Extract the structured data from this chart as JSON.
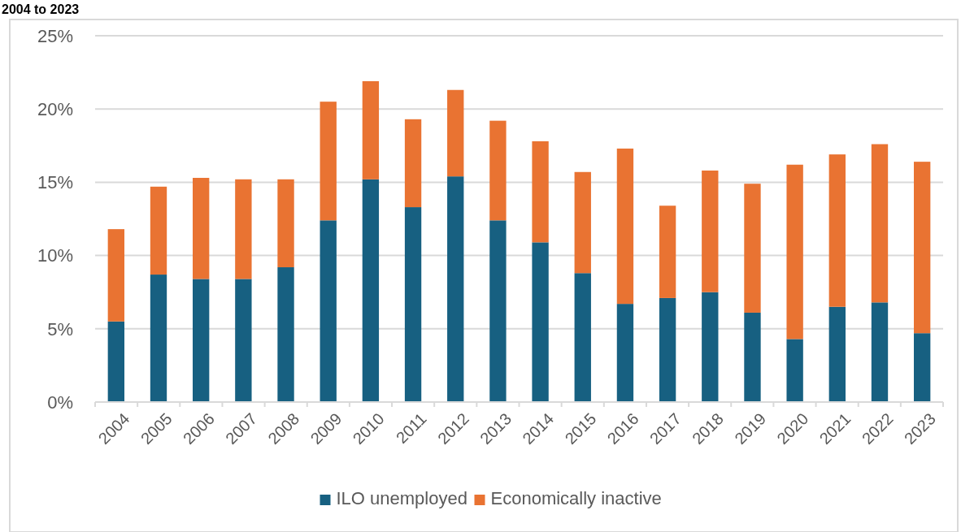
{
  "chart_data": {
    "type": "bar",
    "title": "2004 to 2023",
    "stacked": true,
    "categories": [
      "2004",
      "2005",
      "2006",
      "2007",
      "2008",
      "2009",
      "2010",
      "2011",
      "2012",
      "2013",
      "2014",
      "2015",
      "2016",
      "2017",
      "2018",
      "2019",
      "2020",
      "2021",
      "2022",
      "2023"
    ],
    "series": [
      {
        "name": "ILO unemployed",
        "color": "#176081",
        "values": [
          5.5,
          8.7,
          8.4,
          8.4,
          9.2,
          12.4,
          15.2,
          13.3,
          15.4,
          12.4,
          10.9,
          8.8,
          6.7,
          7.1,
          7.5,
          6.1,
          4.3,
          6.5,
          6.8,
          4.7
        ]
      },
      {
        "name": "Economically inactive",
        "color": "#e97332",
        "values": [
          6.3,
          6.0,
          6.9,
          6.8,
          6.0,
          8.1,
          6.7,
          6.0,
          5.9,
          6.8,
          6.9,
          6.9,
          10.6,
          6.3,
          8.3,
          8.8,
          11.9,
          10.4,
          10.8,
          11.7
        ]
      }
    ],
    "ylim": [
      0,
      25
    ],
    "yticks": [
      {
        "value": 0,
        "label": "0%"
      },
      {
        "value": 5,
        "label": "5%"
      },
      {
        "value": 10,
        "label": "10%"
      },
      {
        "value": 15,
        "label": "15%"
      },
      {
        "value": 20,
        "label": "20%"
      },
      {
        "value": 25,
        "label": "25%"
      }
    ],
    "grid": "y",
    "legend": "bottom"
  }
}
